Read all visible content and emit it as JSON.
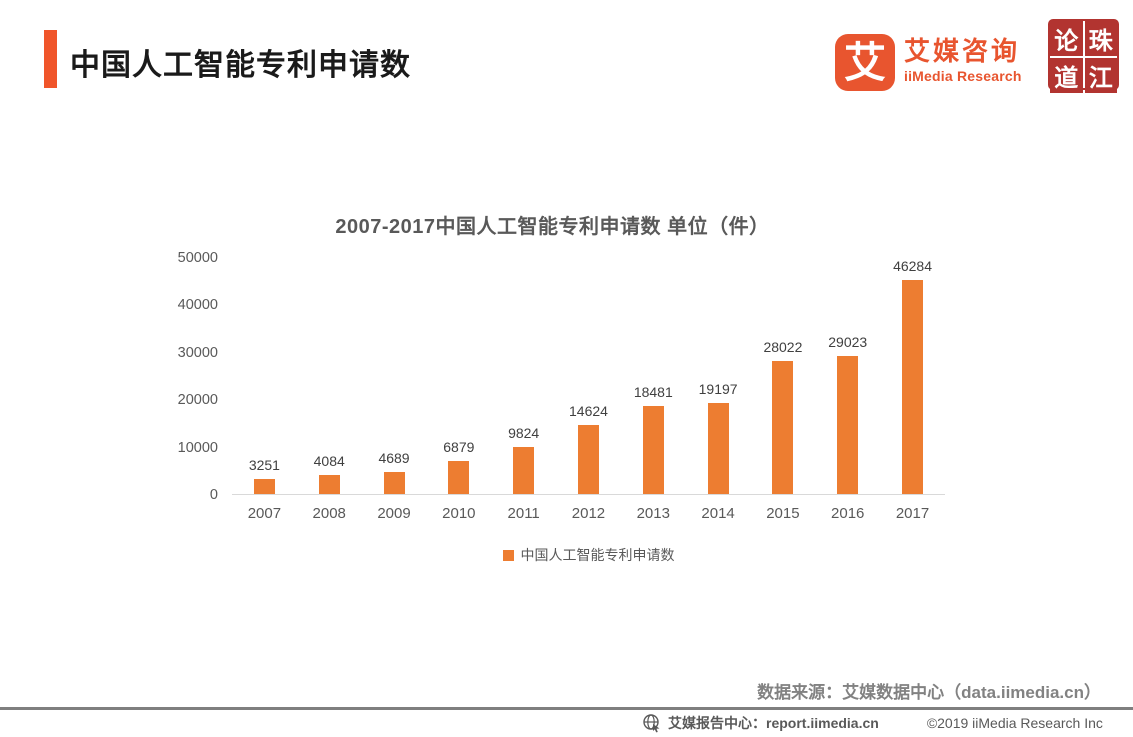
{
  "header": {
    "title": "中国人工智能专利申请数",
    "logo": {
      "icon_char": "艾",
      "brand_cn": "艾媒咨询",
      "brand_en": "iiMedia Research"
    },
    "seal_chars": {
      "tl": "论",
      "tr": "珠",
      "bl": "道",
      "br": "江"
    }
  },
  "chart_data": {
    "type": "bar",
    "title": "2007-2017中国人工智能专利申请数 单位（件）",
    "categories": [
      "2007",
      "2008",
      "2009",
      "2010",
      "2011",
      "2012",
      "2013",
      "2014",
      "2015",
      "2016",
      "2017"
    ],
    "values": [
      3251,
      4084,
      4689,
      6879,
      9824,
      14624,
      18481,
      19197,
      28022,
      29023,
      46284
    ],
    "series_name": "中国人工智能专利申请数",
    "xlabel": "",
    "ylabel": "",
    "ylim": [
      0,
      50000
    ],
    "yticks": [
      0,
      10000,
      20000,
      30000,
      40000,
      50000
    ],
    "grid": false,
    "legend_position": "bottom",
    "bar_color": "#ED7D31"
  },
  "source_note": "数据来源：艾媒数据中心（data.iimedia.cn）",
  "footer": {
    "report_center": "艾媒报告中心：report.iimedia.cn",
    "copyright": "©2019  iiMedia Research Inc"
  },
  "colors": {
    "accent_orange": "#F0552A",
    "logo_orange": "#E8552F",
    "bar_orange": "#ED7D31",
    "seal_red": "#B23430",
    "text_dark": "#1a1a1a",
    "text_gray": "#595959",
    "axis_line": "#D9D9D9",
    "footer_rule": "#7F7F7F"
  }
}
